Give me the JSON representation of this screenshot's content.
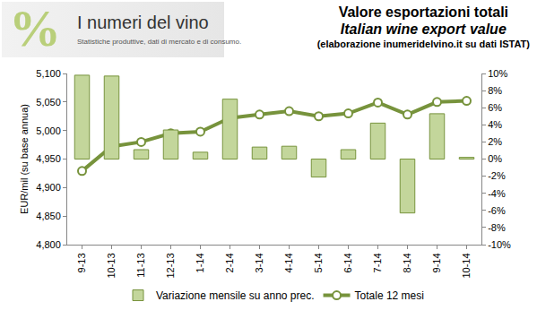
{
  "chart_data": {
    "type": "bar",
    "title": "Valore esportazioni totali",
    "subtitle": "Italian wine export value",
    "annotations": [
      "(elaborazione inumeridelvino.it su dati ISTAT)"
    ],
    "logo": {
      "symbol": "%",
      "title": "I numeri del vino",
      "subtitle": "Statistiche produttive, dati di mercato e di consumo."
    },
    "y_label": "EUR/mil (su base annua)",
    "categories": [
      "9-13",
      "10-13",
      "11-13",
      "12-13",
      "1-14",
      "2-14",
      "3-14",
      "4-14",
      "5-14",
      "6-14",
      "7-14",
      "8-14",
      "9-14",
      "10-14"
    ],
    "series": [
      {
        "name": "Variazione mensile su anno prec.",
        "type": "bar",
        "axis": "y2",
        "color": "#c3d69b",
        "values": [
          9.8,
          9.7,
          1.1,
          3.4,
          0.8,
          7.0,
          1.4,
          1.5,
          -2.1,
          1.1,
          4.2,
          -6.3,
          5.3,
          0.2
        ]
      },
      {
        "name": "Totale 12 mesi",
        "type": "line",
        "color": "#77933c",
        "marker": "circle",
        "line_style": "solid",
        "values": [
          4929,
          4972,
          4980,
          4995,
          4998,
          5022,
          5028,
          5034,
          5025,
          5030,
          5049,
          5028,
          5050,
          5052
        ]
      }
    ],
    "ylim": [
      4800,
      5100
    ],
    "yticks": [
      {
        "value": 4800,
        "label": "4,800"
      },
      {
        "value": 4850,
        "label": "4,850"
      },
      {
        "value": 4900,
        "label": "4,900"
      },
      {
        "value": 4950,
        "label": "4,950"
      },
      {
        "value": 5000,
        "label": "5,000"
      },
      {
        "value": 5050,
        "label": "5,050"
      },
      {
        "value": 5100,
        "label": "5,100"
      }
    ],
    "y2lim": [
      -10,
      10
    ],
    "y2ticks": [
      {
        "value": -10,
        "label": "-10%"
      },
      {
        "value": -8,
        "label": "-8%"
      },
      {
        "value": -6,
        "label": "-6%"
      },
      {
        "value": -4,
        "label": "-4%"
      },
      {
        "value": -2,
        "label": "-2%"
      },
      {
        "value": 0,
        "label": "0%"
      },
      {
        "value": 2,
        "label": "2%"
      },
      {
        "value": 4,
        "label": "4%"
      },
      {
        "value": 6,
        "label": "6%"
      },
      {
        "value": 8,
        "label": "8%"
      },
      {
        "value": 10,
        "label": "10%"
      }
    ],
    "grid": false,
    "legend": "bottom",
    "data_labels": false
  }
}
